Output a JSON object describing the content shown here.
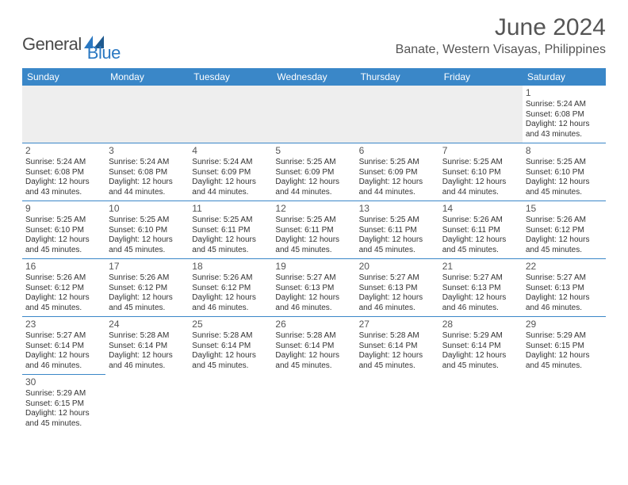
{
  "logo": {
    "a": "General",
    "b": "Blue"
  },
  "title": "June 2024",
  "subtitle": "Banate, Western Visayas, Philippines",
  "colors": {
    "header_bg": "#3a87c8",
    "header_fg": "#ffffff",
    "rule": "#3a87c8",
    "brand_blue": "#2a78c2",
    "text": "#333333"
  },
  "weekdays": [
    "Sunday",
    "Monday",
    "Tuesday",
    "Wednesday",
    "Thursday",
    "Friday",
    "Saturday"
  ],
  "weeks": [
    [
      null,
      null,
      null,
      null,
      null,
      null,
      {
        "d": "1",
        "sr": "Sunrise: 5:24 AM",
        "ss": "Sunset: 6:08 PM",
        "dl1": "Daylight: 12 hours",
        "dl2": "and 43 minutes."
      }
    ],
    [
      {
        "d": "2",
        "sr": "Sunrise: 5:24 AM",
        "ss": "Sunset: 6:08 PM",
        "dl1": "Daylight: 12 hours",
        "dl2": "and 43 minutes."
      },
      {
        "d": "3",
        "sr": "Sunrise: 5:24 AM",
        "ss": "Sunset: 6:08 PM",
        "dl1": "Daylight: 12 hours",
        "dl2": "and 44 minutes."
      },
      {
        "d": "4",
        "sr": "Sunrise: 5:24 AM",
        "ss": "Sunset: 6:09 PM",
        "dl1": "Daylight: 12 hours",
        "dl2": "and 44 minutes."
      },
      {
        "d": "5",
        "sr": "Sunrise: 5:25 AM",
        "ss": "Sunset: 6:09 PM",
        "dl1": "Daylight: 12 hours",
        "dl2": "and 44 minutes."
      },
      {
        "d": "6",
        "sr": "Sunrise: 5:25 AM",
        "ss": "Sunset: 6:09 PM",
        "dl1": "Daylight: 12 hours",
        "dl2": "and 44 minutes."
      },
      {
        "d": "7",
        "sr": "Sunrise: 5:25 AM",
        "ss": "Sunset: 6:10 PM",
        "dl1": "Daylight: 12 hours",
        "dl2": "and 44 minutes."
      },
      {
        "d": "8",
        "sr": "Sunrise: 5:25 AM",
        "ss": "Sunset: 6:10 PM",
        "dl1": "Daylight: 12 hours",
        "dl2": "and 45 minutes."
      }
    ],
    [
      {
        "d": "9",
        "sr": "Sunrise: 5:25 AM",
        "ss": "Sunset: 6:10 PM",
        "dl1": "Daylight: 12 hours",
        "dl2": "and 45 minutes."
      },
      {
        "d": "10",
        "sr": "Sunrise: 5:25 AM",
        "ss": "Sunset: 6:10 PM",
        "dl1": "Daylight: 12 hours",
        "dl2": "and 45 minutes."
      },
      {
        "d": "11",
        "sr": "Sunrise: 5:25 AM",
        "ss": "Sunset: 6:11 PM",
        "dl1": "Daylight: 12 hours",
        "dl2": "and 45 minutes."
      },
      {
        "d": "12",
        "sr": "Sunrise: 5:25 AM",
        "ss": "Sunset: 6:11 PM",
        "dl1": "Daylight: 12 hours",
        "dl2": "and 45 minutes."
      },
      {
        "d": "13",
        "sr": "Sunrise: 5:25 AM",
        "ss": "Sunset: 6:11 PM",
        "dl1": "Daylight: 12 hours",
        "dl2": "and 45 minutes."
      },
      {
        "d": "14",
        "sr": "Sunrise: 5:26 AM",
        "ss": "Sunset: 6:11 PM",
        "dl1": "Daylight: 12 hours",
        "dl2": "and 45 minutes."
      },
      {
        "d": "15",
        "sr": "Sunrise: 5:26 AM",
        "ss": "Sunset: 6:12 PM",
        "dl1": "Daylight: 12 hours",
        "dl2": "and 45 minutes."
      }
    ],
    [
      {
        "d": "16",
        "sr": "Sunrise: 5:26 AM",
        "ss": "Sunset: 6:12 PM",
        "dl1": "Daylight: 12 hours",
        "dl2": "and 45 minutes."
      },
      {
        "d": "17",
        "sr": "Sunrise: 5:26 AM",
        "ss": "Sunset: 6:12 PM",
        "dl1": "Daylight: 12 hours",
        "dl2": "and 45 minutes."
      },
      {
        "d": "18",
        "sr": "Sunrise: 5:26 AM",
        "ss": "Sunset: 6:12 PM",
        "dl1": "Daylight: 12 hours",
        "dl2": "and 46 minutes."
      },
      {
        "d": "19",
        "sr": "Sunrise: 5:27 AM",
        "ss": "Sunset: 6:13 PM",
        "dl1": "Daylight: 12 hours",
        "dl2": "and 46 minutes."
      },
      {
        "d": "20",
        "sr": "Sunrise: 5:27 AM",
        "ss": "Sunset: 6:13 PM",
        "dl1": "Daylight: 12 hours",
        "dl2": "and 46 minutes."
      },
      {
        "d": "21",
        "sr": "Sunrise: 5:27 AM",
        "ss": "Sunset: 6:13 PM",
        "dl1": "Daylight: 12 hours",
        "dl2": "and 46 minutes."
      },
      {
        "d": "22",
        "sr": "Sunrise: 5:27 AM",
        "ss": "Sunset: 6:13 PM",
        "dl1": "Daylight: 12 hours",
        "dl2": "and 46 minutes."
      }
    ],
    [
      {
        "d": "23",
        "sr": "Sunrise: 5:27 AM",
        "ss": "Sunset: 6:14 PM",
        "dl1": "Daylight: 12 hours",
        "dl2": "and 46 minutes."
      },
      {
        "d": "24",
        "sr": "Sunrise: 5:28 AM",
        "ss": "Sunset: 6:14 PM",
        "dl1": "Daylight: 12 hours",
        "dl2": "and 46 minutes."
      },
      {
        "d": "25",
        "sr": "Sunrise: 5:28 AM",
        "ss": "Sunset: 6:14 PM",
        "dl1": "Daylight: 12 hours",
        "dl2": "and 45 minutes."
      },
      {
        "d": "26",
        "sr": "Sunrise: 5:28 AM",
        "ss": "Sunset: 6:14 PM",
        "dl1": "Daylight: 12 hours",
        "dl2": "and 45 minutes."
      },
      {
        "d": "27",
        "sr": "Sunrise: 5:28 AM",
        "ss": "Sunset: 6:14 PM",
        "dl1": "Daylight: 12 hours",
        "dl2": "and 45 minutes."
      },
      {
        "d": "28",
        "sr": "Sunrise: 5:29 AM",
        "ss": "Sunset: 6:14 PM",
        "dl1": "Daylight: 12 hours",
        "dl2": "and 45 minutes."
      },
      {
        "d": "29",
        "sr": "Sunrise: 5:29 AM",
        "ss": "Sunset: 6:15 PM",
        "dl1": "Daylight: 12 hours",
        "dl2": "and 45 minutes."
      }
    ],
    [
      {
        "d": "30",
        "sr": "Sunrise: 5:29 AM",
        "ss": "Sunset: 6:15 PM",
        "dl1": "Daylight: 12 hours",
        "dl2": "and 45 minutes."
      },
      null,
      null,
      null,
      null,
      null,
      null
    ]
  ]
}
